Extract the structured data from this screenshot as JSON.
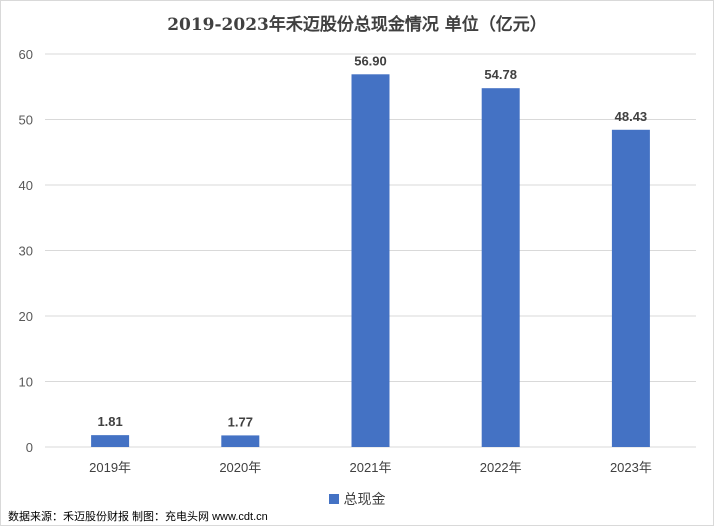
{
  "chart_data": {
    "type": "bar",
    "title": "2019-2023年禾迈股份总现金情况 单位（亿元）",
    "categories": [
      "2019年",
      "2020年",
      "2021年",
      "2022年",
      "2023年"
    ],
    "series": [
      {
        "name": "总现金",
        "values": [
          1.81,
          1.77,
          56.9,
          54.78,
          48.43
        ],
        "labels": [
          "1.81",
          "1.77",
          "56.90",
          "54.78",
          "48.43"
        ]
      }
    ],
    "ylim": [
      0,
      60
    ],
    "yticks": [
      0,
      10,
      20,
      30,
      40,
      50,
      60
    ],
    "grid": true,
    "legend_position": "bottom",
    "bar_color": "#4472c4"
  },
  "footer": {
    "source": "数据来源：禾迈股份财报  制图：充电头网 www.cdt.cn"
  }
}
